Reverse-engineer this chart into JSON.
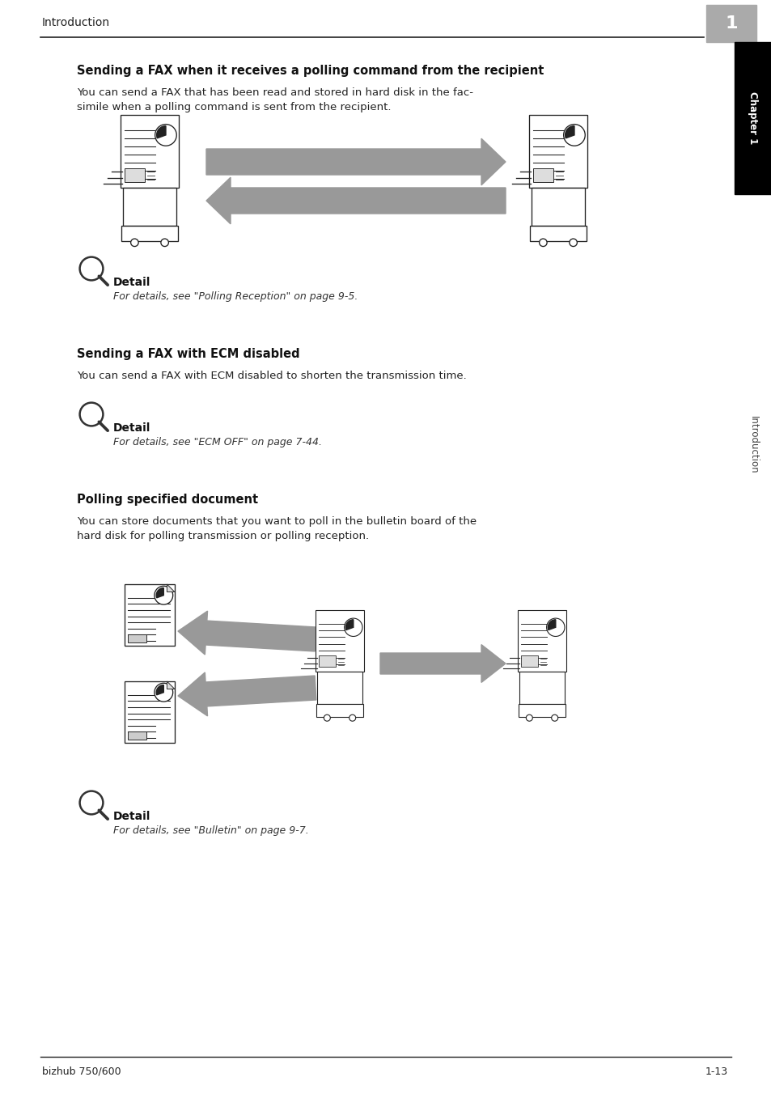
{
  "bg_color": "#ffffff",
  "header_text": "Introduction",
  "chapter_box_color": "#aaaaaa",
  "chapter_box_text": "1",
  "sidebar_black_color": "#000000",
  "sidebar_chapter_text": "Chapter 1",
  "sidebar_intro_text": "Introduction",
  "footer_left": "bizhub 750/600",
  "footer_right": "1-13",
  "section1_title": "Sending a FAX when it receives a polling command from the recipient",
  "section1_body_line1": "You can send a FAX that has been read and stored in hard disk in the fac-",
  "section1_body_line2": "simile when a polling command is sent from the recipient.",
  "section2_title": "Sending a FAX with ECM disabled",
  "section2_body": "You can send a FAX with ECM disabled to shorten the transmission time.",
  "section3_title": "Polling specified document",
  "section3_body_line1": "You can store documents that you want to poll in the bulletin board of the",
  "section3_body_line2": "hard disk for polling transmission or polling reception.",
  "detail1_label": "Detail",
  "detail1_ref": "For details, see \"Polling Reception\" on page 9-5.",
  "detail2_label": "Detail",
  "detail2_ref": "For details, see \"ECM OFF\" on page 7-44.",
  "detail3_label": "Detail",
  "detail3_ref": "For details, see \"Bulletin\" on page 9-7.",
  "arrow_color": "#999999",
  "machine_color": "#222222",
  "doc_icon_color": "#222222"
}
